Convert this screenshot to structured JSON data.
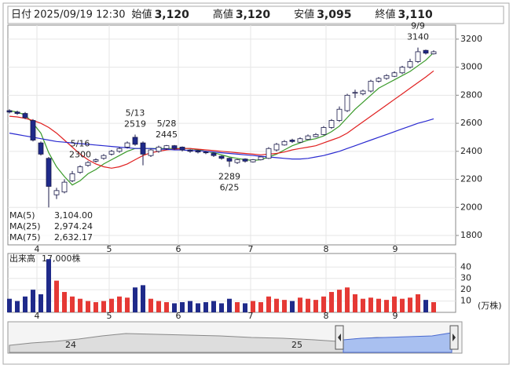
{
  "header": {
    "items": [
      {
        "label": "日付",
        "value": "2025/09/19 12:30"
      },
      {
        "label": "始値",
        "value": "3,120"
      },
      {
        "label": "高値",
        "value": "3,120",
        "color": "#d32f2f"
      },
      {
        "label": "安値",
        "value": "3,095",
        "color": "#2e7d32"
      },
      {
        "label": "終値",
        "value": "3,110"
      }
    ]
  },
  "chart_data": {
    "type": "candlestick",
    "xlim": [
      -0.2,
      56.8
    ],
    "xticks": [
      {
        "value": 3.5,
        "label": "4"
      },
      {
        "value": 12.7,
        "label": "5"
      },
      {
        "value": 21.5,
        "label": "6"
      },
      {
        "value": 30.7,
        "label": "7"
      },
      {
        "value": 40.3,
        "label": "8"
      },
      {
        "value": 49.1,
        "label": "9"
      }
    ],
    "ylim": [
      1733,
      3300
    ],
    "yticks": [
      1800,
      2000,
      2200,
      2400,
      2600,
      2800,
      3000,
      3200
    ],
    "grid": true,
    "up_color": "#ffffff",
    "down_color": "#1f2a8a",
    "edge_color": "#1a1a4a",
    "open": [
      2690,
      2680,
      2670,
      2620,
      2460,
      2350,
      2090,
      2110,
      2190,
      2250,
      2300,
      2330,
      2350,
      2380,
      2400,
      2430,
      2500,
      2460,
      2370,
      2400,
      2420,
      2440,
      2430,
      2410,
      2405,
      2395,
      2385,
      2365,
      2350,
      2320,
      2345,
      2325,
      2340,
      2350,
      2410,
      2445,
      2480,
      2465,
      2485,
      2505,
      2520,
      2570,
      2620,
      2690,
      2820,
      2810,
      2830,
      2900,
      2920,
      2935,
      2960,
      3000,
      3040,
      3120,
      3095
    ],
    "high": [
      2700,
      2690,
      2680,
      2630,
      2470,
      2360,
      2140,
      2200,
      2260,
      2300,
      2330,
      2350,
      2380,
      2410,
      2430,
      2470,
      2519,
      2470,
      2420,
      2440,
      2445,
      2445,
      2435,
      2415,
      2410,
      2400,
      2390,
      2370,
      2355,
      2345,
      2350,
      2345,
      2365,
      2430,
      2460,
      2480,
      2490,
      2500,
      2520,
      2530,
      2580,
      2630,
      2720,
      2810,
      2840,
      2840,
      2910,
      2930,
      2950,
      2970,
      3010,
      3060,
      3140,
      3125,
      3120
    ],
    "low": [
      2670,
      2660,
      2630,
      2470,
      2370,
      2000,
      2060,
      2100,
      2180,
      2240,
      2290,
      2320,
      2340,
      2370,
      2390,
      2420,
      2440,
      2300,
      2360,
      2390,
      2410,
      2410,
      2400,
      2390,
      2385,
      2380,
      2360,
      2340,
      2289,
      2310,
      2320,
      2320,
      2335,
      2345,
      2400,
      2440,
      2460,
      2460,
      2480,
      2500,
      2515,
      2560,
      2610,
      2680,
      2780,
      2800,
      2820,
      2890,
      2910,
      2930,
      2950,
      2990,
      3030,
      3090,
      3090
    ],
    "close": [
      2680,
      2670,
      2640,
      2480,
      2380,
      2150,
      2120,
      2180,
      2240,
      2290,
      2320,
      2340,
      2370,
      2400,
      2420,
      2460,
      2450,
      2380,
      2410,
      2430,
      2440,
      2420,
      2410,
      2400,
      2395,
      2390,
      2370,
      2350,
      2330,
      2340,
      2330,
      2340,
      2360,
      2420,
      2450,
      2470,
      2470,
      2490,
      2510,
      2520,
      2570,
      2620,
      2700,
      2800,
      2820,
      2830,
      2900,
      2920,
      2940,
      2960,
      3000,
      3040,
      3110,
      3100,
      3110
    ],
    "series": [
      {
        "name": "MA(5)",
        "last_label": "3,104.00",
        "color": "#3a9a2a",
        "values": [
          2690,
          2680,
          2660,
          2600,
          2530,
          2390,
          2290,
          2220,
          2160,
          2190,
          2240,
          2270,
          2310,
          2340,
          2370,
          2400,
          2420,
          2420,
          2420,
          2420,
          2420,
          2420,
          2420,
          2420,
          2410,
          2400,
          2390,
          2375,
          2360,
          2350,
          2340,
          2335,
          2340,
          2360,
          2380,
          2410,
          2440,
          2460,
          2480,
          2490,
          2510,
          2540,
          2580,
          2640,
          2700,
          2750,
          2800,
          2850,
          2880,
          2910,
          2940,
          2970,
          3010,
          3050,
          3104
        ]
      },
      {
        "name": "MA(25)",
        "last_label": "2,974.24",
        "color": "#e02020",
        "values": [
          2650,
          2645,
          2635,
          2620,
          2600,
          2570,
          2530,
          2480,
          2430,
          2380,
          2340,
          2310,
          2290,
          2280,
          2290,
          2310,
          2340,
          2370,
          2390,
          2400,
          2410,
          2415,
          2420,
          2420,
          2415,
          2410,
          2405,
          2400,
          2395,
          2390,
          2385,
          2380,
          2375,
          2380,
          2385,
          2395,
          2410,
          2420,
          2430,
          2440,
          2460,
          2480,
          2500,
          2530,
          2570,
          2610,
          2650,
          2690,
          2730,
          2770,
          2810,
          2850,
          2890,
          2930,
          2974
        ]
      },
      {
        "name": "MA(75)",
        "last_label": "2,632.17",
        "color": "#2a2ad0",
        "values": [
          2530,
          2520,
          2510,
          2500,
          2490,
          2480,
          2470,
          2465,
          2460,
          2455,
          2450,
          2445,
          2440,
          2435,
          2430,
          2425,
          2420,
          2420,
          2420,
          2415,
          2415,
          2410,
          2410,
          2405,
          2405,
          2400,
          2395,
          2390,
          2385,
          2380,
          2375,
          2370,
          2365,
          2360,
          2355,
          2350,
          2345,
          2345,
          2350,
          2360,
          2370,
          2385,
          2400,
          2420,
          2440,
          2460,
          2480,
          2500,
          2520,
          2540,
          2560,
          2580,
          2600,
          2615,
          2632
        ]
      }
    ],
    "annotations": [
      {
        "label": "5/13",
        "value": 2519
      },
      {
        "label": "5/16",
        "value": 2300
      },
      {
        "label": "5/28",
        "value": 2445
      },
      {
        "label": "6/25",
        "value": 2289
      },
      {
        "label": "9/9",
        "value": 3140
      }
    ],
    "volume": {
      "title": "出来高",
      "title_value": "17,000株",
      "unit": "(万株)",
      "ylim": [
        0,
        52
      ],
      "yticks": [
        10,
        20,
        30,
        40
      ],
      "up_color": "#e53935",
      "down_color": "#1f2a8a",
      "values": [
        12,
        10,
        14,
        20,
        16,
        47,
        28,
        18,
        14,
        12,
        10,
        9,
        10,
        12,
        14,
        13,
        22,
        24,
        12,
        10,
        9,
        8,
        9,
        10,
        8,
        9,
        10,
        8,
        12,
        9,
        8,
        10,
        9,
        14,
        12,
        11,
        10,
        13,
        12,
        11,
        14,
        18,
        20,
        22,
        16,
        12,
        13,
        12,
        11,
        14,
        12,
        13,
        16,
        11,
        9
      ]
    }
  },
  "navigator": {
    "labels": [
      "24",
      "25"
    ]
  }
}
